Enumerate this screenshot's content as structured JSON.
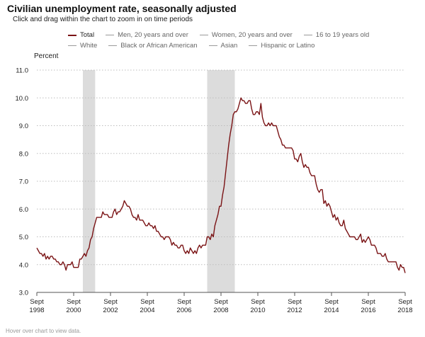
{
  "page": {
    "title": "Civilian unemployment rate, seasonally adjusted",
    "subtitle": "Click and drag within the chart to zoom in on time periods",
    "footer": "Hover over chart to view data."
  },
  "legend": {
    "rows": [
      [
        {
          "label": "Total",
          "active": true
        },
        {
          "label": "Men, 20 years and over",
          "active": false
        },
        {
          "label": "Women, 20 years and over",
          "active": false
        },
        {
          "label": "16 to 19 years old",
          "active": false
        }
      ],
      [
        {
          "label": "White",
          "active": false
        },
        {
          "label": "Black or African American",
          "active": false
        },
        {
          "label": "Asian",
          "active": false
        },
        {
          "label": "Hispanic or Latino",
          "active": false
        }
      ]
    ]
  },
  "chart_data": {
    "type": "line",
    "ylabel": "Percent",
    "ylim": [
      3.0,
      11.0
    ],
    "yticks": [
      "3.0",
      "4.0",
      "5.0",
      "6.0",
      "7.0",
      "8.0",
      "9.0",
      "10.0",
      "11.0"
    ],
    "xlim": [
      "1998-09",
      "2018-09"
    ],
    "xticks": [
      {
        "date": "1998-09",
        "line1": "Sept",
        "line2": "1998"
      },
      {
        "date": "2000-09",
        "line1": "Sept",
        "line2": "2000"
      },
      {
        "date": "2002-09",
        "line1": "Sept",
        "line2": "2002"
      },
      {
        "date": "2004-09",
        "line1": "Sept",
        "line2": "2004"
      },
      {
        "date": "2006-09",
        "line1": "Sept",
        "line2": "2006"
      },
      {
        "date": "2008-09",
        "line1": "Sept",
        "line2": "2008"
      },
      {
        "date": "2010-09",
        "line1": "Sept",
        "line2": "2010"
      },
      {
        "date": "2012-09",
        "line1": "Sept",
        "line2": "2012"
      },
      {
        "date": "2014-09",
        "line1": "Sept",
        "line2": "2014"
      },
      {
        "date": "2016-09",
        "line1": "Sept",
        "line2": "2016"
      },
      {
        "date": "2018-09",
        "line1": "Sept",
        "line2": "2018"
      }
    ],
    "grid": {
      "horizontal": true,
      "style": "dotted"
    },
    "recessions": [
      {
        "start": "2001-03",
        "end": "2001-11"
      },
      {
        "start": "2007-12",
        "end": "2009-06"
      }
    ],
    "series": [
      {
        "name": "Total",
        "color": "#7a1315",
        "points": [
          [
            "1998-09",
            4.6
          ],
          [
            "1998-10",
            4.5
          ],
          [
            "1998-11",
            4.4
          ],
          [
            "1998-12",
            4.4
          ],
          [
            "1999-01",
            4.3
          ],
          [
            "1999-02",
            4.4
          ],
          [
            "1999-03",
            4.2
          ],
          [
            "1999-04",
            4.3
          ],
          [
            "1999-05",
            4.2
          ],
          [
            "1999-06",
            4.3
          ],
          [
            "1999-07",
            4.3
          ],
          [
            "1999-08",
            4.2
          ],
          [
            "1999-09",
            4.2
          ],
          [
            "1999-10",
            4.1
          ],
          [
            "1999-11",
            4.1
          ],
          [
            "1999-12",
            4.0
          ],
          [
            "2000-01",
            4.0
          ],
          [
            "2000-02",
            4.1
          ],
          [
            "2000-03",
            4.0
          ],
          [
            "2000-04",
            3.8
          ],
          [
            "2000-05",
            4.0
          ],
          [
            "2000-06",
            4.0
          ],
          [
            "2000-07",
            4.0
          ],
          [
            "2000-08",
            4.1
          ],
          [
            "2000-09",
            3.9
          ],
          [
            "2000-10",
            3.9
          ],
          [
            "2000-11",
            3.9
          ],
          [
            "2000-12",
            3.9
          ],
          [
            "2001-01",
            4.2
          ],
          [
            "2001-02",
            4.2
          ],
          [
            "2001-03",
            4.3
          ],
          [
            "2001-04",
            4.4
          ],
          [
            "2001-05",
            4.3
          ],
          [
            "2001-06",
            4.5
          ],
          [
            "2001-07",
            4.6
          ],
          [
            "2001-08",
            4.9
          ],
          [
            "2001-09",
            5.0
          ],
          [
            "2001-10",
            5.3
          ],
          [
            "2001-11",
            5.5
          ],
          [
            "2001-12",
            5.7
          ],
          [
            "2002-01",
            5.7
          ],
          [
            "2002-02",
            5.7
          ],
          [
            "2002-03",
            5.7
          ],
          [
            "2002-04",
            5.9
          ],
          [
            "2002-05",
            5.8
          ],
          [
            "2002-06",
            5.8
          ],
          [
            "2002-07",
            5.8
          ],
          [
            "2002-08",
            5.7
          ],
          [
            "2002-09",
            5.7
          ],
          [
            "2002-10",
            5.7
          ],
          [
            "2002-11",
            5.9
          ],
          [
            "2002-12",
            6.0
          ],
          [
            "2003-01",
            5.8
          ],
          [
            "2003-02",
            5.9
          ],
          [
            "2003-03",
            5.9
          ],
          [
            "2003-04",
            6.0
          ],
          [
            "2003-05",
            6.1
          ],
          [
            "2003-06",
            6.3
          ],
          [
            "2003-07",
            6.2
          ],
          [
            "2003-08",
            6.1
          ],
          [
            "2003-09",
            6.1
          ],
          [
            "2003-10",
            6.0
          ],
          [
            "2003-11",
            5.8
          ],
          [
            "2003-12",
            5.7
          ],
          [
            "2004-01",
            5.7
          ],
          [
            "2004-02",
            5.6
          ],
          [
            "2004-03",
            5.8
          ],
          [
            "2004-04",
            5.6
          ],
          [
            "2004-05",
            5.6
          ],
          [
            "2004-06",
            5.6
          ],
          [
            "2004-07",
            5.5
          ],
          [
            "2004-08",
            5.4
          ],
          [
            "2004-09",
            5.4
          ],
          [
            "2004-10",
            5.5
          ],
          [
            "2004-11",
            5.4
          ],
          [
            "2004-12",
            5.4
          ],
          [
            "2005-01",
            5.3
          ],
          [
            "2005-02",
            5.4
          ],
          [
            "2005-03",
            5.2
          ],
          [
            "2005-04",
            5.2
          ],
          [
            "2005-05",
            5.1
          ],
          [
            "2005-06",
            5.0
          ],
          [
            "2005-07",
            5.0
          ],
          [
            "2005-08",
            4.9
          ],
          [
            "2005-09",
            5.0
          ],
          [
            "2005-10",
            5.0
          ],
          [
            "2005-11",
            5.0
          ],
          [
            "2005-12",
            4.9
          ],
          [
            "2006-01",
            4.7
          ],
          [
            "2006-02",
            4.8
          ],
          [
            "2006-03",
            4.7
          ],
          [
            "2006-04",
            4.7
          ],
          [
            "2006-05",
            4.6
          ],
          [
            "2006-06",
            4.6
          ],
          [
            "2006-07",
            4.7
          ],
          [
            "2006-08",
            4.7
          ],
          [
            "2006-09",
            4.5
          ],
          [
            "2006-10",
            4.4
          ],
          [
            "2006-11",
            4.5
          ],
          [
            "2006-12",
            4.4
          ],
          [
            "2007-01",
            4.6
          ],
          [
            "2007-02",
            4.5
          ],
          [
            "2007-03",
            4.4
          ],
          [
            "2007-04",
            4.5
          ],
          [
            "2007-05",
            4.4
          ],
          [
            "2007-06",
            4.6
          ],
          [
            "2007-07",
            4.7
          ],
          [
            "2007-08",
            4.6
          ],
          [
            "2007-09",
            4.7
          ],
          [
            "2007-10",
            4.7
          ],
          [
            "2007-11",
            4.7
          ],
          [
            "2007-12",
            5.0
          ],
          [
            "2008-01",
            5.0
          ],
          [
            "2008-02",
            4.9
          ],
          [
            "2008-03",
            5.1
          ],
          [
            "2008-04",
            5.0
          ],
          [
            "2008-05",
            5.4
          ],
          [
            "2008-06",
            5.6
          ],
          [
            "2008-07",
            5.8
          ],
          [
            "2008-08",
            6.1
          ],
          [
            "2008-09",
            6.1
          ],
          [
            "2008-10",
            6.5
          ],
          [
            "2008-11",
            6.8
          ],
          [
            "2008-12",
            7.3
          ],
          [
            "2009-01",
            7.8
          ],
          [
            "2009-02",
            8.3
          ],
          [
            "2009-03",
            8.7
          ],
          [
            "2009-04",
            9.0
          ],
          [
            "2009-05",
            9.4
          ],
          [
            "2009-06",
            9.5
          ],
          [
            "2009-07",
            9.5
          ],
          [
            "2009-08",
            9.6
          ],
          [
            "2009-09",
            9.8
          ],
          [
            "2009-10",
            10.0
          ],
          [
            "2009-11",
            9.9
          ],
          [
            "2009-12",
            9.9
          ],
          [
            "2010-01",
            9.8
          ],
          [
            "2010-02",
            9.8
          ],
          [
            "2010-03",
            9.9
          ],
          [
            "2010-04",
            9.9
          ],
          [
            "2010-05",
            9.6
          ],
          [
            "2010-06",
            9.4
          ],
          [
            "2010-07",
            9.4
          ],
          [
            "2010-08",
            9.5
          ],
          [
            "2010-09",
            9.5
          ],
          [
            "2010-10",
            9.4
          ],
          [
            "2010-11",
            9.8
          ],
          [
            "2010-12",
            9.3
          ],
          [
            "2011-01",
            9.1
          ],
          [
            "2011-02",
            9.0
          ],
          [
            "2011-03",
            9.0
          ],
          [
            "2011-04",
            9.1
          ],
          [
            "2011-05",
            9.0
          ],
          [
            "2011-06",
            9.1
          ],
          [
            "2011-07",
            9.0
          ],
          [
            "2011-08",
            9.0
          ],
          [
            "2011-09",
            9.0
          ],
          [
            "2011-10",
            8.8
          ],
          [
            "2011-11",
            8.6
          ],
          [
            "2011-12",
            8.5
          ],
          [
            "2012-01",
            8.3
          ],
          [
            "2012-02",
            8.3
          ],
          [
            "2012-03",
            8.2
          ],
          [
            "2012-04",
            8.2
          ],
          [
            "2012-05",
            8.2
          ],
          [
            "2012-06",
            8.2
          ],
          [
            "2012-07",
            8.2
          ],
          [
            "2012-08",
            8.1
          ],
          [
            "2012-09",
            7.8
          ],
          [
            "2012-10",
            7.8
          ],
          [
            "2012-11",
            7.7
          ],
          [
            "2012-12",
            7.9
          ],
          [
            "2013-01",
            8.0
          ],
          [
            "2013-02",
            7.7
          ],
          [
            "2013-03",
            7.5
          ],
          [
            "2013-04",
            7.6
          ],
          [
            "2013-05",
            7.5
          ],
          [
            "2013-06",
            7.5
          ],
          [
            "2013-07",
            7.3
          ],
          [
            "2013-08",
            7.2
          ],
          [
            "2013-09",
            7.2
          ],
          [
            "2013-10",
            7.2
          ],
          [
            "2013-11",
            6.9
          ],
          [
            "2013-12",
            6.7
          ],
          [
            "2014-01",
            6.6
          ],
          [
            "2014-02",
            6.7
          ],
          [
            "2014-03",
            6.7
          ],
          [
            "2014-04",
            6.2
          ],
          [
            "2014-05",
            6.3
          ],
          [
            "2014-06",
            6.1
          ],
          [
            "2014-07",
            6.2
          ],
          [
            "2014-08",
            6.1
          ],
          [
            "2014-09",
            5.9
          ],
          [
            "2014-10",
            5.7
          ],
          [
            "2014-11",
            5.8
          ],
          [
            "2014-12",
            5.6
          ],
          [
            "2015-01",
            5.7
          ],
          [
            "2015-02",
            5.5
          ],
          [
            "2015-03",
            5.4
          ],
          [
            "2015-04",
            5.4
          ],
          [
            "2015-05",
            5.6
          ],
          [
            "2015-06",
            5.3
          ],
          [
            "2015-07",
            5.2
          ],
          [
            "2015-08",
            5.1
          ],
          [
            "2015-09",
            5.0
          ],
          [
            "2015-10",
            5.0
          ],
          [
            "2015-11",
            5.0
          ],
          [
            "2015-12",
            5.0
          ],
          [
            "2016-01",
            4.9
          ],
          [
            "2016-02",
            4.9
          ],
          [
            "2016-03",
            5.0
          ],
          [
            "2016-04",
            5.1
          ],
          [
            "2016-05",
            4.8
          ],
          [
            "2016-06",
            4.9
          ],
          [
            "2016-07",
            4.8
          ],
          [
            "2016-08",
            4.9
          ],
          [
            "2016-09",
            5.0
          ],
          [
            "2016-10",
            4.9
          ],
          [
            "2016-11",
            4.7
          ],
          [
            "2016-12",
            4.7
          ],
          [
            "2017-01",
            4.7
          ],
          [
            "2017-02",
            4.6
          ],
          [
            "2017-03",
            4.4
          ],
          [
            "2017-04",
            4.4
          ],
          [
            "2017-05",
            4.4
          ],
          [
            "2017-06",
            4.3
          ],
          [
            "2017-07",
            4.3
          ],
          [
            "2017-08",
            4.4
          ],
          [
            "2017-09",
            4.2
          ],
          [
            "2017-10",
            4.1
          ],
          [
            "2017-11",
            4.1
          ],
          [
            "2017-12",
            4.1
          ],
          [
            "2018-01",
            4.1
          ],
          [
            "2018-02",
            4.1
          ],
          [
            "2018-03",
            4.1
          ],
          [
            "2018-04",
            3.9
          ],
          [
            "2018-05",
            3.8
          ],
          [
            "2018-06",
            4.0
          ],
          [
            "2018-07",
            3.9
          ],
          [
            "2018-08",
            3.9
          ],
          [
            "2018-09",
            3.7
          ]
        ]
      }
    ]
  }
}
